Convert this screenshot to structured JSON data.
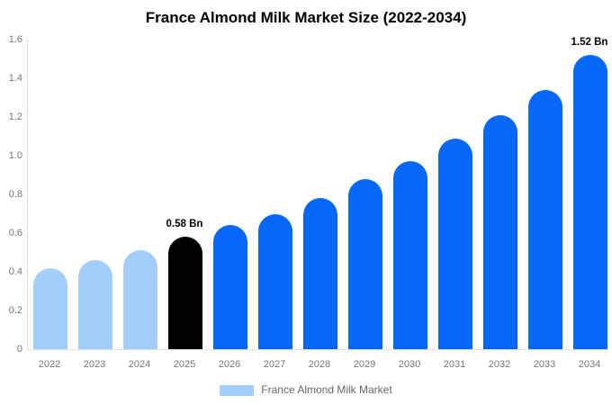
{
  "header": {
    "title": "France Almond Milk Market Size (2022-2034)"
  },
  "chart_data": {
    "type": "bar",
    "title": "France Almond Milk Market Size (2022-2034)",
    "series_name": "France Almond Milk Market",
    "unit": "Bn",
    "categories": [
      "2022",
      "2023",
      "2024",
      "2025",
      "2026",
      "2027",
      "2028",
      "2029",
      "2030",
      "2031",
      "2032",
      "2033",
      "2034"
    ],
    "values": [
      0.42,
      0.46,
      0.51,
      0.58,
      0.64,
      0.7,
      0.78,
      0.88,
      0.97,
      1.09,
      1.21,
      1.34,
      1.52
    ],
    "bar_colors": [
      "#a3cdfa",
      "#a3cdfa",
      "#a3cdfa",
      "#000000",
      "#0568fa",
      "#0568fa",
      "#0568fa",
      "#0568fa",
      "#0568fa",
      "#0568fa",
      "#0568fa",
      "#0568fa",
      "#0568fa"
    ],
    "data_labels": [
      {
        "category": "2025",
        "text": "0.58 Bn"
      },
      {
        "category": "2034",
        "text": "1.52 Bn"
      }
    ],
    "xlabel": "",
    "ylabel": "",
    "ylim": [
      0,
      1.6
    ],
    "yticks": [
      "0",
      "0.2",
      "0.4",
      "0.6",
      "0.8",
      "1.0",
      "1.2",
      "1.4",
      "1.6"
    ],
    "grid": false,
    "legend": {
      "position": "bottom",
      "label": "France Almond Milk Market",
      "swatch_color": "#a3cdfa"
    }
  },
  "colors": {
    "background": "#ffffff",
    "light_blue_bar": "#a3cdfa",
    "primary_blue_bar": "#0568fa",
    "highlight_black_bar": "#000000",
    "axis_line": "#dedede",
    "tick_text": "#757575",
    "legend_text": "#666666",
    "title_text": "#000000"
  }
}
